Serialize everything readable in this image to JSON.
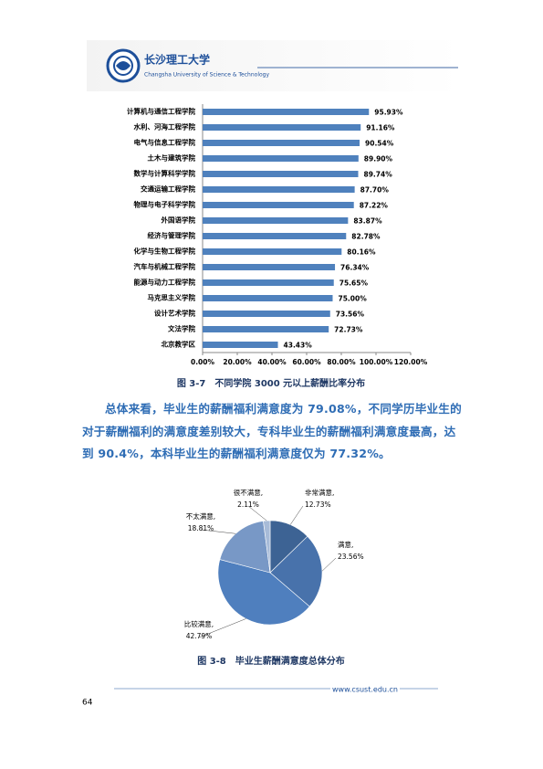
{
  "header": {
    "title": "长沙理工大学",
    "subtitle": "Changsha University of Science & Technology"
  },
  "chart_data": [
    {
      "type": "bar",
      "orientation": "horizontal",
      "title": "图 3-7　不同学院 3000 元以上薪酬比率分布",
      "categories": [
        "计算机与通信工程学院",
        "水利、河海工程学院",
        "电气与信息工程学院",
        "土木与建筑学院",
        "数学与计算科学学院",
        "交通运输工程学院",
        "物理与电子科学学院",
        "外国语学院",
        "经济与管理学院",
        "化学与生物工程学院",
        "汽车与机械工程学院",
        "能源与动力工程学院",
        "马克思主义学院",
        "设计艺术学院",
        "文法学院",
        "北京教学区"
      ],
      "values": [
        95.93,
        91.16,
        90.54,
        89.9,
        89.74,
        87.7,
        87.22,
        83.87,
        82.78,
        80.16,
        76.34,
        75.65,
        75.0,
        73.56,
        72.73,
        43.43
      ],
      "value_labels": [
        "95.93%",
        "91.16%",
        "90.54%",
        "89.90%",
        "89.74%",
        "87.70%",
        "87.22%",
        "83.87%",
        "82.78%",
        "80.16%",
        "76.34%",
        "75.65%",
        "75.00%",
        "73.56%",
        "72.73%",
        "43.43%"
      ],
      "color": "#4f81bd",
      "xlim": [
        0,
        120
      ],
      "xticks": [
        {
          "value": 0,
          "label": "0.00%"
        },
        {
          "value": 20,
          "label": "20.00%"
        },
        {
          "value": 40,
          "label": "40.00%"
        },
        {
          "value": 60,
          "label": "60.00%"
        },
        {
          "value": 80,
          "label": "80.00%"
        },
        {
          "value": 100,
          "label": "100.00%"
        },
        {
          "value": 120,
          "label": "120.00%"
        }
      ]
    },
    {
      "type": "pie",
      "title": "图 3-8　毕业生薪酬满意度总体分布",
      "categories": [
        "非常满意,",
        "满意,",
        "比较满意,",
        "不太满意,",
        "很不满意,"
      ],
      "values": [
        12.73,
        23.56,
        42.79,
        18.81,
        2.11
      ],
      "value_labels": [
        "12.73%",
        "23.56%",
        "42.79%",
        "18.81%",
        "2.11%"
      ],
      "colors": [
        "#3d6394",
        "#4872ab",
        "#4f7fbe",
        "#7898c6",
        "#a7bbd8"
      ]
    }
  ],
  "paragraph": "总体来看，毕业生的薪酬福利满意度为 79.08%，不同学历毕业生的对于薪酬福利的满意度差别较大，专科毕业生的薪酬福利满意度最高，达到 90.4%，本科毕业生的薪酬福利满意度仅为 77.32%。",
  "footer": "www.csust.edu.cn",
  "page_number": "64"
}
